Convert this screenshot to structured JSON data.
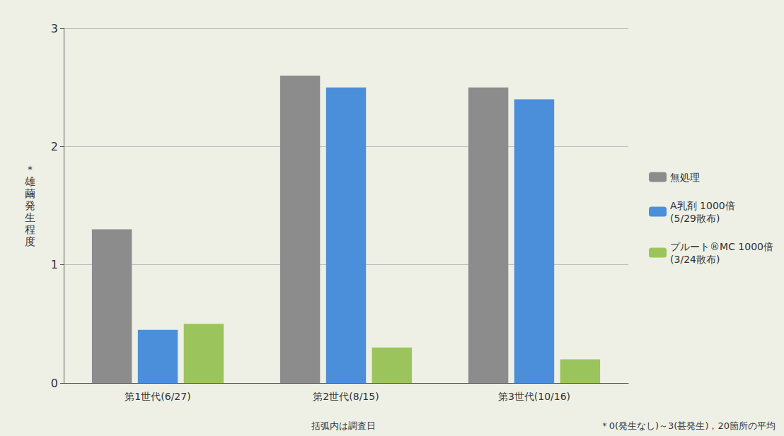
{
  "chart_data": {
    "type": "bar",
    "y_label": "＊雄繭発生程度",
    "categories": [
      "第1世代(6/27)",
      "第2世代(8/15)",
      "第3世代(10/16)"
    ],
    "series": [
      {
        "name": "無処理",
        "color": "#8c8c8c",
        "values": [
          1.3,
          2.6,
          2.5
        ]
      },
      {
        "name": "A乳剤 1000倍 (5/29散布)",
        "color": "#4b8fdb",
        "values": [
          0.45,
          2.5,
          2.4
        ]
      },
      {
        "name": "プルート®MC 1000倍 (3/24散布)",
        "color": "#9cc45c",
        "values": [
          0.5,
          0.3,
          0.2
        ]
      }
    ],
    "ylim": [
      0,
      3
    ],
    "yticks": [
      0,
      1,
      2,
      3
    ],
    "grid": true,
    "legend": "right",
    "annotations": [
      "括弧内は調査日",
      "＊0(発生なし)～3(甚発生)，20箇所の平均"
    ]
  }
}
